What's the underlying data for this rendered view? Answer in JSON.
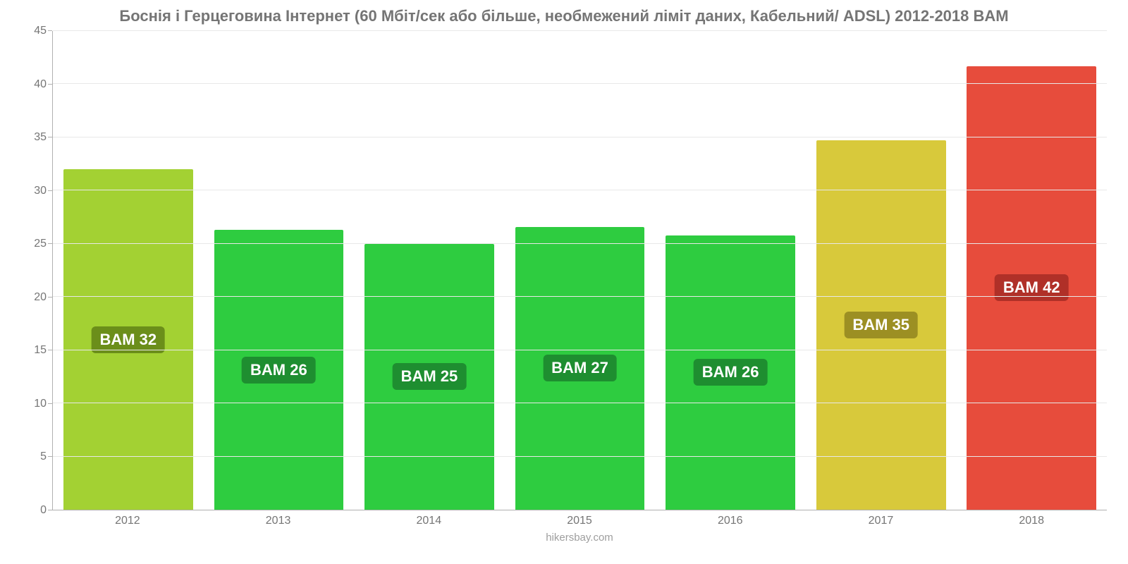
{
  "title": "Боснія і Герцеговина Інтернет (60 Мбіт/сек або більше, необмежений ліміт даних, Кабельний/ ADSL) 2012-2018 BAM",
  "title_fontsize": 22,
  "title_color": "#757575",
  "type": "bar",
  "background_color": "#ffffff",
  "grid_color": "#e8e8e8",
  "axis_color": "#b0b0b0",
  "tick_color": "#757575",
  "tick_fontsize": 16,
  "ylim": [
    0,
    45
  ],
  "ytick_step": 5,
  "yticks": [
    0,
    5,
    10,
    15,
    20,
    25,
    30,
    35,
    40,
    45
  ],
  "bar_width": 0.86,
  "categories": [
    "2012",
    "2013",
    "2014",
    "2015",
    "2016",
    "2017",
    "2018"
  ],
  "values": [
    32,
    26.3,
    25,
    26.6,
    25.8,
    34.7,
    41.7
  ],
  "bar_colors": [
    "#a3d133",
    "#2ecc40",
    "#2ecc40",
    "#2ecc40",
    "#2ecc40",
    "#d8c93b",
    "#e74c3c"
  ],
  "value_labels": [
    "BAM 32",
    "BAM 26",
    "BAM 25",
    "BAM 27",
    "BAM 26",
    "BAM 35",
    "BAM 42"
  ],
  "value_label_bg": [
    "#6b8e1a",
    "#1e8e30",
    "#1e8e30",
    "#1e8e30",
    "#1e8e30",
    "#9c8f23",
    "#b03028"
  ],
  "value_label_fontsize": 22,
  "value_label_color": "#ffffff",
  "attribution": "hikersbay.com",
  "attribution_color": "#9e9e9e",
  "attribution_fontsize": 15
}
